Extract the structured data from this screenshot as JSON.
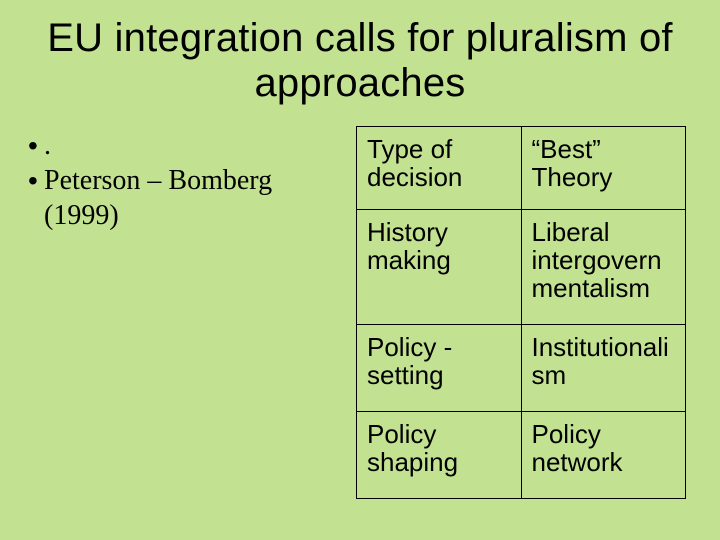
{
  "background_color": "#c2e291",
  "text_color": "#000000",
  "title": {
    "text": "EU integration calls for pluralism of approaches",
    "font_family": "Arial",
    "font_size_pt": 30,
    "font_weight": "normal",
    "align": "center"
  },
  "bullets": {
    "font_family": "Times New Roman",
    "font_size_pt": 21,
    "items": [
      ".",
      "Peterson – Bomberg (1999)"
    ]
  },
  "table": {
    "type": "table",
    "border_color": "#000000",
    "border_width": 1.5,
    "cell_font_family": "Arial",
    "cell_font_size_pt": 19,
    "column_widths_pct": [
      50,
      50
    ],
    "columns": [
      "Type of decision",
      "“Best” Theory"
    ],
    "rows": [
      [
        "History making",
        "Liberal intergovernmentalism"
      ],
      [
        "Policy - setting",
        "Institutionalism"
      ],
      [
        "Policy shaping",
        "Policy network"
      ]
    ]
  }
}
